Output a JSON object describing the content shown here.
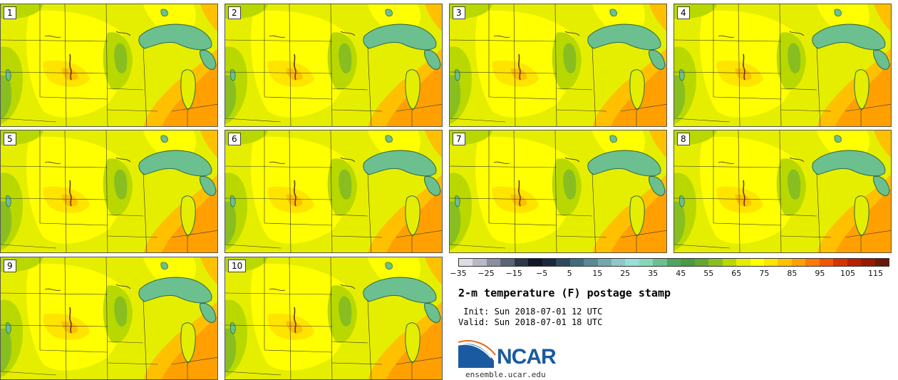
{
  "members": [
    "1",
    "2",
    "3",
    "4",
    "5",
    "6",
    "7",
    "8",
    "9",
    "10"
  ],
  "colorbar": {
    "colors": [
      "#dcdce4",
      "#b8b8c6",
      "#8a8ea0",
      "#5a6478",
      "#2c3848",
      "#101828",
      "#1a2a3c",
      "#2e4a5e",
      "#426c7e",
      "#5a8a96",
      "#74a8ae",
      "#8ec8c8",
      "#96e0d8",
      "#88d8b8",
      "#6cc090",
      "#4ea460",
      "#4a9a40",
      "#62a830",
      "#88be20",
      "#b8d800",
      "#e4ee00",
      "#ffff00",
      "#ffe400",
      "#ffc000",
      "#ffa000",
      "#ff7a00",
      "#f45400",
      "#d83200",
      "#b82000",
      "#981800",
      "#6a1808"
    ],
    "tick_labels": [
      "−35",
      "−25",
      "−15",
      "−5",
      "5",
      "15",
      "25",
      "35",
      "45",
      "55",
      "65",
      "75",
      "85",
      "95",
      "105",
      "115"
    ]
  },
  "title": "2-m temperature (F) postage stamp",
  "init_text": " Init: Sun 2018-07-01 12 UTC",
  "valid_text": "Valid: Sun 2018-07-01 18 UTC",
  "logo": {
    "name": "NCAR",
    "website": "ensemble.ucar.edu"
  },
  "map_colors": {
    "base": "#e6ee00",
    "yellow": "#ffff00",
    "green": "#b8d800",
    "dark_green": "#88be20",
    "warm": "#ffc000",
    "orange": "#ffa000",
    "lake": "#6cc090",
    "lake_edge": "#2e6a48"
  }
}
